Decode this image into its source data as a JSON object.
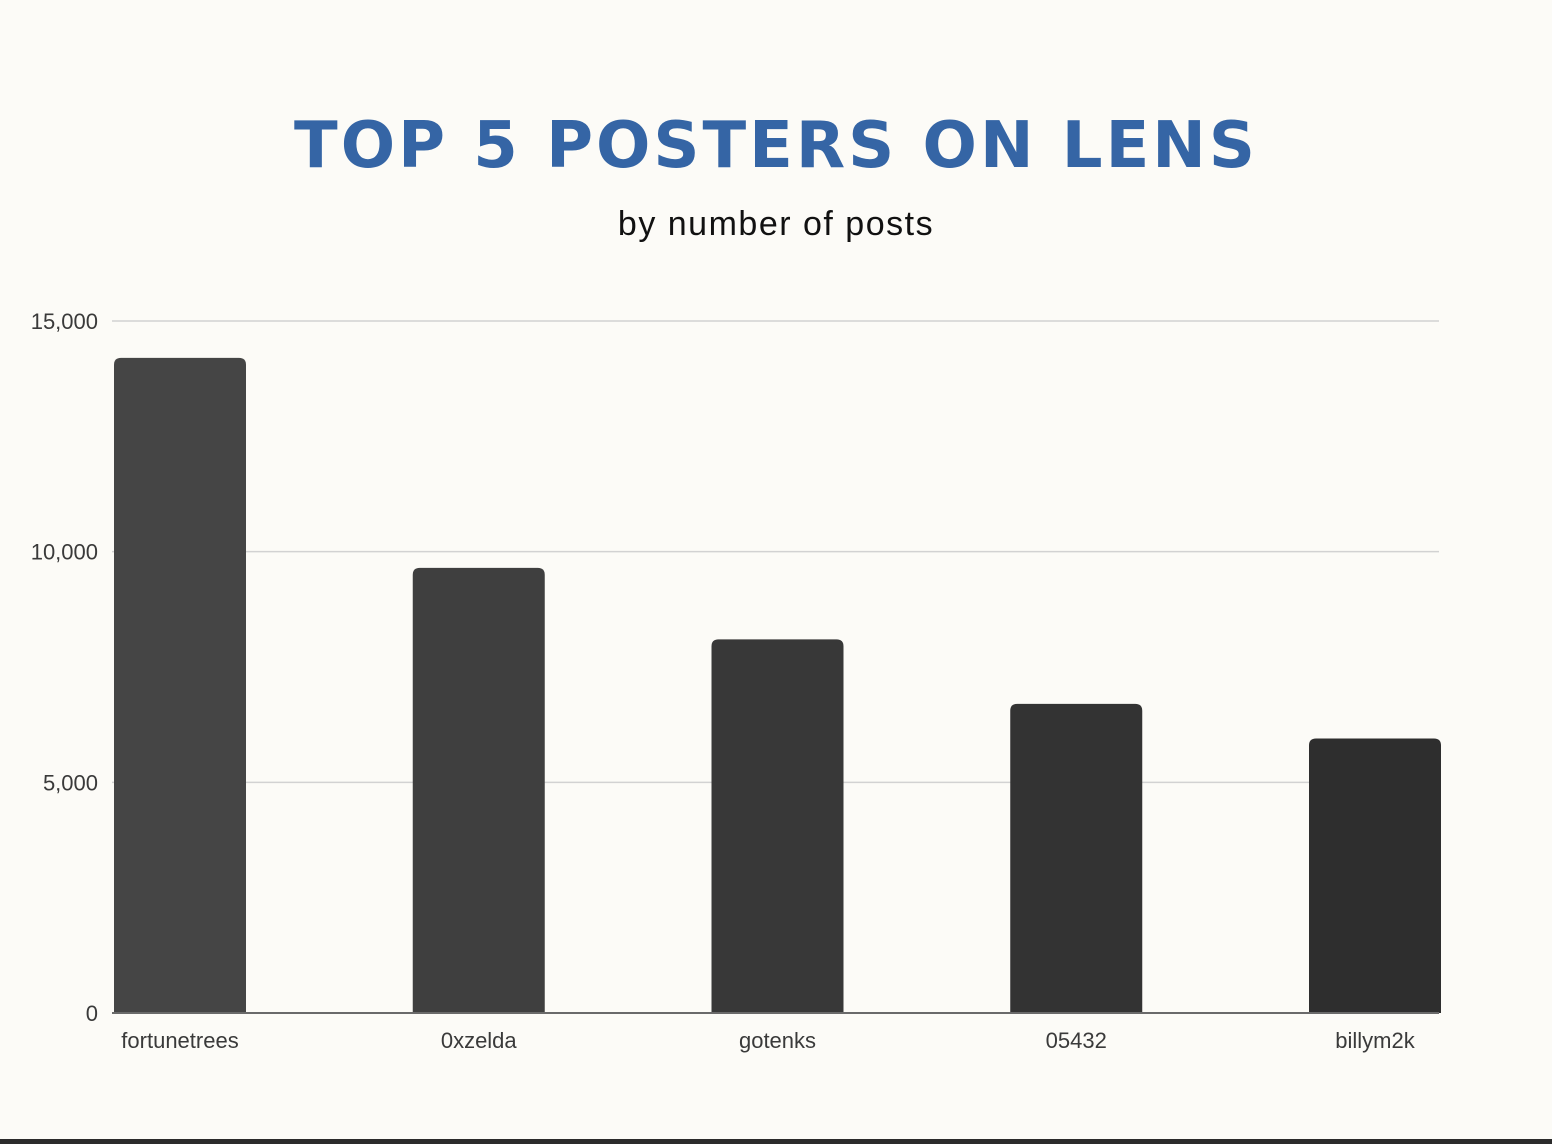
{
  "chart_data": {
    "type": "bar",
    "title": "TOP 5 POSTERS ON LENS",
    "subtitle": "by number of posts",
    "xlabel": "",
    "ylabel": "",
    "categories": [
      "fortunetrees",
      "0xzelda",
      "gotenks",
      "05432",
      "billym2k"
    ],
    "values": [
      14200,
      9650,
      8100,
      6700,
      5950
    ],
    "ylim": [
      0,
      15000
    ],
    "yticks": [
      0,
      5000,
      10000,
      15000
    ],
    "ytick_labels": [
      "0",
      "5,000",
      "10,000",
      "15,000"
    ],
    "grid": true,
    "legend": "none",
    "bar_colors": [
      "#454545",
      "#3f3f3f",
      "#383838",
      "#333333",
      "#2e2e2e"
    ],
    "title_color": "#3565a5"
  }
}
